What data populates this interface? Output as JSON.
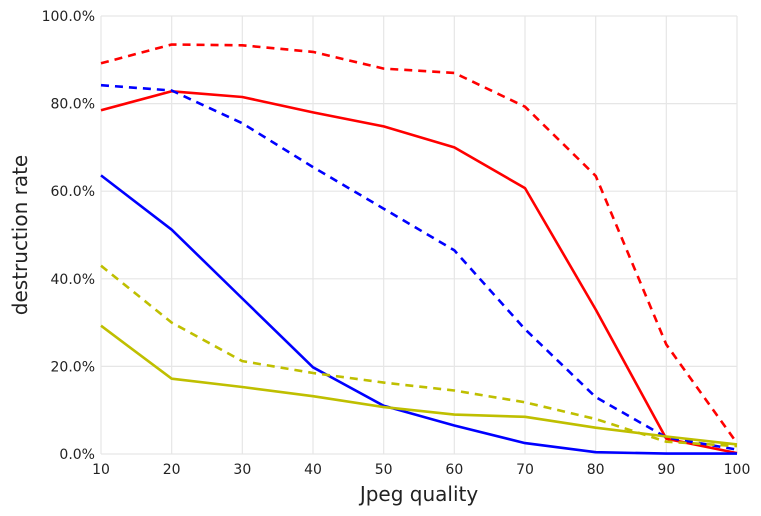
{
  "chart_data": {
    "type": "line",
    "title": "",
    "xlabel": "Jpeg quality",
    "ylabel": "destruction rate",
    "xlim": [
      10,
      100
    ],
    "ylim": [
      0,
      100
    ],
    "x": [
      10,
      20,
      30,
      40,
      50,
      60,
      70,
      80,
      90,
      100
    ],
    "x_ticks": [
      {
        "value": 10,
        "label": "10"
      },
      {
        "value": 20,
        "label": "20"
      },
      {
        "value": 30,
        "label": "30"
      },
      {
        "value": 40,
        "label": "40"
      },
      {
        "value": 50,
        "label": "50"
      },
      {
        "value": 60,
        "label": "60"
      },
      {
        "value": 70,
        "label": "70"
      },
      {
        "value": 80,
        "label": "80"
      },
      {
        "value": 90,
        "label": "90"
      },
      {
        "value": 100,
        "label": "100"
      }
    ],
    "y_ticks": [
      {
        "value": 0,
        "label": "0.0%"
      },
      {
        "value": 20,
        "label": "20.0%"
      },
      {
        "value": 40,
        "label": "40.0%"
      },
      {
        "value": 60,
        "label": "60.0%"
      },
      {
        "value": 80,
        "label": "80.0%"
      },
      {
        "value": 100,
        "label": "100.0%"
      }
    ],
    "grid": true,
    "series": [
      {
        "name": "red-dashed",
        "color": "#ff0000",
        "style": "dashed",
        "values": [
          89.2,
          93.5,
          93.3,
          91.8,
          88.0,
          87.0,
          79.3,
          63.5,
          25.0,
          2.5
        ]
      },
      {
        "name": "red-solid",
        "color": "#ff0000",
        "style": "solid",
        "values": [
          78.5,
          82.8,
          81.5,
          78.0,
          74.8,
          70.0,
          60.7,
          33.0,
          3.5,
          0.2
        ]
      },
      {
        "name": "blue-dashed",
        "color": "#0000ff",
        "style": "dashed",
        "values": [
          84.2,
          83.0,
          75.5,
          65.5,
          56.0,
          46.5,
          28.5,
          13.0,
          3.8,
          1.0
        ]
      },
      {
        "name": "blue-solid",
        "color": "#0000ff",
        "style": "solid",
        "values": [
          63.6,
          51.2,
          35.5,
          19.8,
          11.0,
          6.5,
          2.5,
          0.4,
          0.1,
          0.1
        ]
      },
      {
        "name": "yellow-dashed",
        "color": "#bfbf00",
        "style": "dashed",
        "values": [
          43.0,
          30.0,
          21.2,
          18.5,
          16.3,
          14.5,
          11.8,
          8.0,
          2.8,
          1.8
        ]
      },
      {
        "name": "yellow-solid",
        "color": "#bfbf00",
        "style": "solid",
        "values": [
          29.3,
          17.2,
          15.3,
          13.2,
          10.7,
          9.0,
          8.5,
          6.0,
          4.0,
          2.2
        ]
      }
    ]
  }
}
